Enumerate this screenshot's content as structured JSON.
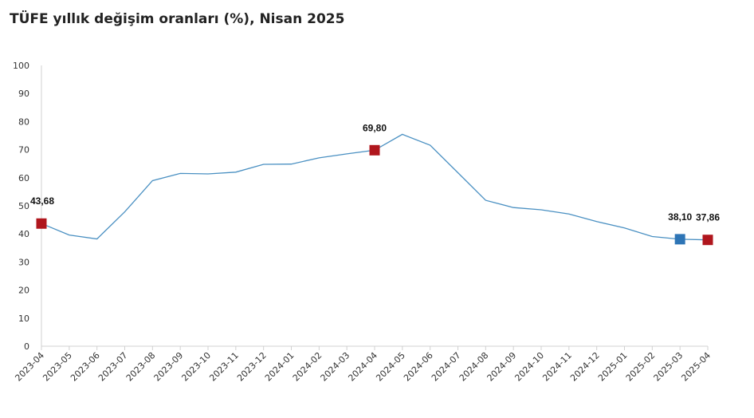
{
  "chart_data": {
    "type": "line",
    "title": "TÜFE yıllık değişim oranları (%), Nisan 2025",
    "xlabel": "",
    "ylabel": "",
    "ylim": [
      0,
      100
    ],
    "yticks": [
      "0",
      "10",
      "20",
      "30",
      "40",
      "50",
      "60",
      "70",
      "80",
      "90",
      "100"
    ],
    "categories": [
      "2023-04",
      "2023-05",
      "2023-06",
      "2023-07",
      "2023-08",
      "2023-09",
      "2023-10",
      "2023-11",
      "2023-12",
      "2024-01",
      "2024-02",
      "2024-03",
      "2024-04",
      "2024-05",
      "2024-06",
      "2024-07",
      "2024-08",
      "2024-09",
      "2024-10",
      "2024-11",
      "2024-12",
      "2025-01",
      "2025-02",
      "2025-03",
      "2025-04"
    ],
    "series": [
      {
        "values": [
          43.68,
          39.59,
          38.21,
          47.83,
          58.94,
          61.53,
          61.36,
          61.98,
          64.77,
          64.86,
          67.07,
          68.5,
          69.8,
          75.45,
          71.6,
          61.78,
          51.97,
          49.38,
          48.58,
          47.09,
          44.38,
          42.12,
          39.05,
          38.1,
          37.86
        ],
        "color": "#4a90c2"
      }
    ],
    "highlighted_points": [
      {
        "category": "2023-04",
        "value": 43.68,
        "label": "43,68",
        "color": "#b0161d"
      },
      {
        "category": "2024-04",
        "value": 69.8,
        "label": "69,80",
        "color": "#b0161d"
      },
      {
        "category": "2025-03",
        "value": 38.1,
        "label": "38,10",
        "color": "#2e75b6"
      },
      {
        "category": "2025-04",
        "value": 37.86,
        "label": "37,86",
        "color": "#b0161d"
      }
    ],
    "grid": false
  }
}
